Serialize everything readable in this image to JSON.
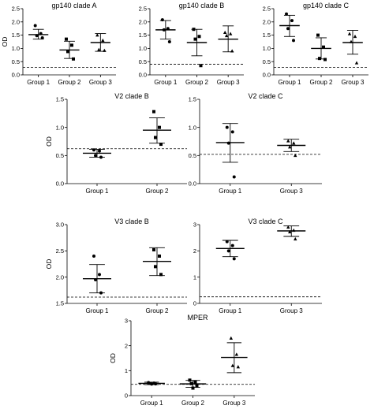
{
  "chart_data": [
    {
      "type": "scatter",
      "title": "gp140 clade A",
      "ylabel": "OD",
      "ylim": [
        0,
        2.5
      ],
      "yticks": [
        "0.0",
        "0.5",
        "1.0",
        "1.5",
        "2.0",
        "2.5"
      ],
      "categories": [
        "Group 1",
        "Group 2",
        "Group 3"
      ],
      "baseline": 0.28,
      "groups": [
        {
          "marker": "circle",
          "points": [
            1.86,
            1.56,
            1.48,
            1.4
          ],
          "mean": 1.52,
          "upper": 1.72,
          "lower": 1.35
        },
        {
          "marker": "square",
          "points": [
            1.35,
            1.12,
            0.88,
            0.6
          ],
          "mean": 0.94,
          "upper": 1.27,
          "lower": 0.62
        },
        {
          "marker": "triangle",
          "points": [
            1.5,
            1.3,
            0.95,
            0.92
          ],
          "mean": 1.22,
          "upper": 1.56,
          "lower": 0.89
        }
      ]
    },
    {
      "type": "scatter",
      "title": "gp140 clade B",
      "ylabel": "",
      "ylim": [
        0,
        2.5
      ],
      "yticks": [
        "0.0",
        "0.5",
        "1.0",
        "1.5",
        "2.0",
        "2.5"
      ],
      "categories": [
        "Group 1",
        "Group 2",
        "Group 3"
      ],
      "baseline": 0.4,
      "groups": [
        {
          "marker": "circle",
          "points": [
            2.08,
            1.75,
            1.7,
            1.25
          ],
          "mean": 1.7,
          "upper": 2.05,
          "lower": 1.35
        },
        {
          "marker": "square",
          "points": [
            1.72,
            1.45,
            1.35,
            0.35
          ],
          "mean": 1.22,
          "upper": 1.72,
          "lower": 0.72
        },
        {
          "marker": "triangle",
          "points": [
            1.6,
            1.55,
            1.48,
            0.9
          ],
          "mean": 1.35,
          "upper": 1.85,
          "lower": 0.87
        }
      ]
    },
    {
      "type": "scatter",
      "title": "gp140 clade C",
      "ylabel": "",
      "ylim": [
        0,
        2.5
      ],
      "yticks": [
        "0.0",
        "0.5",
        "1.0",
        "1.5",
        "2.0",
        "2.5"
      ],
      "categories": [
        "Group 1",
        "Group 2",
        "Group 3"
      ],
      "baseline": 0.28,
      "groups": [
        {
          "marker": "circle",
          "points": [
            2.3,
            2.05,
            1.75,
            1.3
          ],
          "mean": 1.86,
          "upper": 2.25,
          "lower": 1.45
        },
        {
          "marker": "square",
          "points": [
            1.5,
            1.05,
            0.62,
            0.58
          ],
          "mean": 1.0,
          "upper": 1.4,
          "lower": 0.6
        },
        {
          "marker": "triangle",
          "points": [
            1.55,
            1.45,
            1.25,
            0.45
          ],
          "mean": 1.22,
          "upper": 1.68,
          "lower": 0.78
        }
      ]
    },
    {
      "type": "scatter",
      "title": "V2 clade B",
      "ylabel": "OD",
      "ylim": [
        0,
        1.5
      ],
      "yticks": [
        "0.0",
        "0.5",
        "1.0",
        "1.5"
      ],
      "categories": [
        "Group 1",
        "Group 2"
      ],
      "baseline": 0.62,
      "groups": [
        {
          "marker": "circle",
          "points": [
            0.6,
            0.58,
            0.5,
            0.47
          ],
          "mean": 0.54,
          "upper": 0.61,
          "lower": 0.47
        },
        {
          "marker": "square",
          "points": [
            1.28,
            1.0,
            0.82,
            0.7
          ],
          "mean": 0.95,
          "upper": 1.17,
          "lower": 0.72
        }
      ]
    },
    {
      "type": "scatter",
      "title": "V2 clade C",
      "ylabel": "",
      "ylim": [
        0,
        1.5
      ],
      "yticks": [
        "0.0",
        "0.5",
        "1.0",
        "1.5"
      ],
      "categories": [
        "Group 1",
        "Group 3"
      ],
      "baseline": 0.52,
      "groups": [
        {
          "marker": "circle",
          "points": [
            1.0,
            0.92,
            0.72,
            0.12
          ],
          "mean": 0.73,
          "upper": 1.07,
          "lower": 0.38
        },
        {
          "marker": "triangle",
          "points": [
            0.76,
            0.72,
            0.65,
            0.5
          ],
          "mean": 0.68,
          "upper": 0.79,
          "lower": 0.57
        }
      ]
    },
    {
      "type": "scatter",
      "title": "V3 clade B",
      "ylabel": "OD",
      "ylim": [
        1.5,
        3.0
      ],
      "yticks": [
        "1.5",
        "2.0",
        "2.5",
        "3.0"
      ],
      "categories": [
        "Group 1",
        "Group 2"
      ],
      "baseline": 1.62,
      "groups": [
        {
          "marker": "circle",
          "points": [
            2.4,
            2.05,
            1.95,
            1.7
          ],
          "mean": 1.97,
          "upper": 2.24,
          "lower": 1.7
        },
        {
          "marker": "square",
          "points": [
            2.52,
            2.4,
            2.2,
            2.05
          ],
          "mean": 2.3,
          "upper": 2.56,
          "lower": 2.03
        }
      ]
    },
    {
      "type": "scatter",
      "title": "V3 clade C",
      "ylabel": "",
      "ylim": [
        0,
        3
      ],
      "yticks": [
        "0",
        "1",
        "2",
        "3"
      ],
      "categories": [
        "Group 1",
        "Group 3"
      ],
      "baseline": 0.25,
      "groups": [
        {
          "marker": "circle",
          "points": [
            2.35,
            2.2,
            2.0,
            1.7
          ],
          "mean": 2.09,
          "upper": 2.4,
          "lower": 1.78
        },
        {
          "marker": "triangle",
          "points": [
            2.9,
            2.78,
            2.72,
            2.45
          ],
          "mean": 2.76,
          "upper": 2.95,
          "lower": 2.55
        }
      ]
    },
    {
      "type": "scatter",
      "title": "MPER",
      "ylabel": "OD",
      "ylim": [
        0,
        3
      ],
      "yticks": [
        "0",
        "1",
        "2",
        "3"
      ],
      "categories": [
        "Group 1",
        "Group 2",
        "Group 3"
      ],
      "baseline": 0.45,
      "groups": [
        {
          "marker": "circle",
          "points": [
            0.52,
            0.5,
            0.49,
            0.47,
            0.46
          ],
          "mean": 0.49,
          "upper": 0.54,
          "lower": 0.44
        },
        {
          "marker": "square",
          "points": [
            0.62,
            0.55,
            0.48,
            0.4,
            0.3
          ],
          "mean": 0.47,
          "upper": 0.61,
          "lower": 0.33
        },
        {
          "marker": "triangle",
          "points": [
            2.3,
            1.65,
            1.2,
            1.15
          ],
          "mean": 1.53,
          "upper": 2.12,
          "lower": 0.92
        }
      ]
    }
  ]
}
